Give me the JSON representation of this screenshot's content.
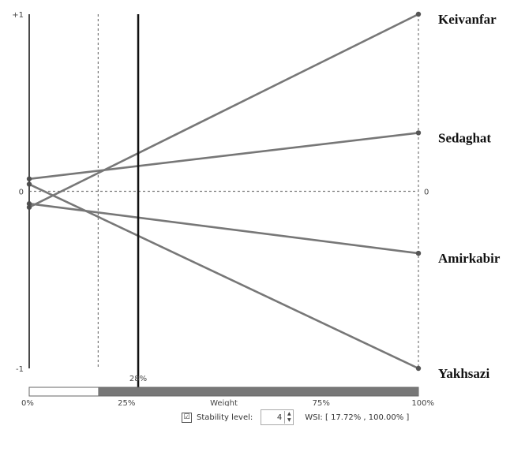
{
  "chart_data": {
    "type": "line",
    "x_axis": {
      "label": "Weight",
      "ticks": [
        "0%",
        "25%",
        "75%",
        "100%"
      ],
      "tick_values": [
        0,
        25,
        75,
        100
      ],
      "range": [
        0,
        100
      ]
    },
    "y_axis": {
      "left_ticks": [
        "+1",
        "0",
        "-1"
      ],
      "right_ticks": [
        "0"
      ],
      "tick_values": [
        1,
        0,
        -1
      ],
      "range": [
        -1,
        1
      ]
    },
    "current_weight": 28,
    "current_weight_label": "28%",
    "stable_interval": [
      17.72,
      100
    ],
    "series": [
      {
        "name": "Keivanfar",
        "values": [
          -0.09,
          1.0
        ]
      },
      {
        "name": "Sedaghat",
        "values": [
          0.07,
          0.33
        ]
      },
      {
        "name": "Amirkabir",
        "values": [
          -0.07,
          -0.35
        ]
      },
      {
        "name": "Yakhsazi",
        "values": [
          0.04,
          -1.0
        ]
      }
    ],
    "grid": "dotted reference lines at 0 and at the stability interval bounds",
    "legend": "labels at right end of each line"
  },
  "controls": {
    "stability_checked": "☑",
    "stability_label": "Stability level:",
    "stability_value": "4",
    "stepper_up": "▲",
    "stepper_down": "▼",
    "wsi_text": "WSI: [ 17.72% , 100.00% ]"
  },
  "colors": {
    "line": "#777777",
    "cursor": "#111111",
    "bar_fill": "#777777"
  }
}
